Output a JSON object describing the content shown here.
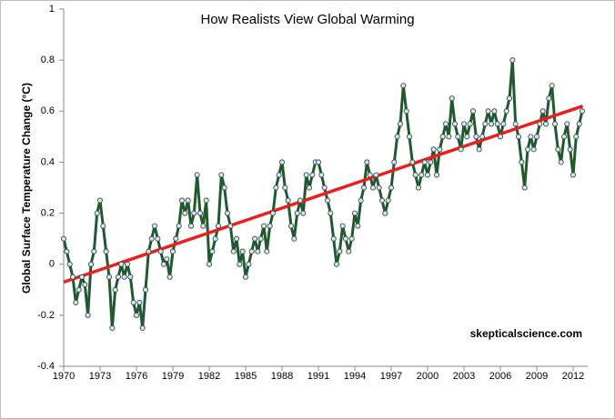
{
  "chart_data": {
    "type": "line",
    "title": "How Realists View Global Warming",
    "y_label": "Global Surface Temperature Change (°C)",
    "annotation": "skepticalscience.com",
    "x": [
      1970,
      1970.25,
      1970.5,
      1970.75,
      1971,
      1971.25,
      1971.5,
      1971.75,
      1972,
      1972.25,
      1972.5,
      1972.75,
      1973,
      1973.25,
      1973.5,
      1973.75,
      1974,
      1974.25,
      1974.5,
      1974.75,
      1975,
      1975.25,
      1975.5,
      1975.75,
      1976,
      1976.25,
      1976.5,
      1976.75,
      1977,
      1977.25,
      1977.5,
      1977.75,
      1978,
      1978.25,
      1978.5,
      1978.75,
      1979,
      1979.25,
      1979.5,
      1979.75,
      1980,
      1980.25,
      1980.5,
      1980.75,
      1981,
      1981.25,
      1981.5,
      1981.75,
      1982,
      1982.25,
      1982.5,
      1982.75,
      1983,
      1983.25,
      1983.5,
      1983.75,
      1984,
      1984.25,
      1984.5,
      1984.75,
      1985,
      1985.25,
      1985.5,
      1985.75,
      1986,
      1986.25,
      1986.5,
      1986.75,
      1987,
      1987.25,
      1987.5,
      1987.75,
      1988,
      1988.25,
      1988.5,
      1988.75,
      1989,
      1989.25,
      1989.5,
      1989.75,
      1990,
      1990.25,
      1990.5,
      1990.75,
      1991,
      1991.25,
      1991.5,
      1991.75,
      1992,
      1992.25,
      1992.5,
      1992.75,
      1993,
      1993.25,
      1993.5,
      1993.75,
      1994,
      1994.25,
      1994.5,
      1994.75,
      1995,
      1995.25,
      1995.5,
      1995.75,
      1996,
      1996.25,
      1996.5,
      1996.75,
      1997,
      1997.25,
      1997.5,
      1997.75,
      1998,
      1998.25,
      1998.5,
      1998.75,
      1999,
      1999.25,
      1999.5,
      1999.75,
      2000,
      2000.25,
      2000.5,
      2000.75,
      2001,
      2001.25,
      2001.5,
      2001.75,
      2002,
      2002.25,
      2002.5,
      2002.75,
      2003,
      2003.25,
      2003.5,
      2003.75,
      2004,
      2004.25,
      2004.5,
      2004.75,
      2005,
      2005.25,
      2005.5,
      2005.75,
      2006,
      2006.25,
      2006.5,
      2006.75,
      2007,
      2007.25,
      2007.5,
      2007.75,
      2008,
      2008.25,
      2008.5,
      2008.75,
      2009,
      2009.25,
      2009.5,
      2009.75,
      2010,
      2010.25,
      2010.5,
      2010.75,
      2011,
      2011.25,
      2011.5,
      2011.75,
      2012,
      2012.25,
      2012.5,
      2012.75
    ],
    "series": [
      {
        "name": "Temperature",
        "color": "#1f5a2e",
        "marker_color": "#cfe9f2",
        "values": [
          0.1,
          0.05,
          0.0,
          -0.05,
          -0.15,
          -0.1,
          -0.05,
          -0.08,
          -0.2,
          0.0,
          0.05,
          0.2,
          0.25,
          0.15,
          0.05,
          -0.05,
          -0.25,
          -0.1,
          -0.05,
          0.0,
          -0.05,
          0.0,
          -0.05,
          -0.15,
          -0.2,
          -0.15,
          -0.25,
          -0.1,
          0.05,
          0.1,
          0.15,
          0.1,
          0.05,
          0.0,
          0.02,
          -0.05,
          0.05,
          0.1,
          0.15,
          0.25,
          0.2,
          0.25,
          0.15,
          0.2,
          0.35,
          0.2,
          0.15,
          0.25,
          0.0,
          0.05,
          0.1,
          0.15,
          0.35,
          0.3,
          0.2,
          0.15,
          0.05,
          0.1,
          0.0,
          0.05,
          -0.05,
          0.0,
          0.05,
          0.1,
          0.05,
          0.1,
          0.15,
          0.05,
          0.15,
          0.2,
          0.3,
          0.35,
          0.4,
          0.3,
          0.25,
          0.15,
          0.1,
          0.2,
          0.25,
          0.2,
          0.35,
          0.3,
          0.35,
          0.4,
          0.4,
          0.35,
          0.3,
          0.25,
          0.2,
          0.1,
          0.0,
          0.05,
          0.15,
          0.1,
          0.05,
          0.1,
          0.2,
          0.15,
          0.25,
          0.3,
          0.4,
          0.35,
          0.3,
          0.35,
          0.3,
          0.25,
          0.2,
          0.25,
          0.3,
          0.4,
          0.5,
          0.55,
          0.7,
          0.6,
          0.5,
          0.4,
          0.35,
          0.3,
          0.35,
          0.4,
          0.35,
          0.4,
          0.45,
          0.35,
          0.45,
          0.5,
          0.55,
          0.5,
          0.65,
          0.55,
          0.5,
          0.45,
          0.55,
          0.5,
          0.55,
          0.6,
          0.5,
          0.45,
          0.5,
          0.55,
          0.6,
          0.55,
          0.6,
          0.55,
          0.5,
          0.55,
          0.6,
          0.65,
          0.8,
          0.55,
          0.5,
          0.4,
          0.3,
          0.45,
          0.5,
          0.45,
          0.5,
          0.55,
          0.6,
          0.55,
          0.65,
          0.7,
          0.55,
          0.45,
          0.4,
          0.5,
          0.55,
          0.45,
          0.35,
          0.5,
          0.55,
          0.6
        ]
      }
    ],
    "trend": {
      "x": [
        1970,
        2012.8
      ],
      "values": [
        -0.07,
        0.62
      ],
      "color": "#e8201e"
    },
    "xlim": [
      1970,
      2013.2
    ],
    "xticks": [
      1970,
      1973,
      1976,
      1979,
      1982,
      1985,
      1988,
      1991,
      1994,
      1997,
      2000,
      2003,
      2006,
      2009,
      2012
    ],
    "ylim": [
      -0.4,
      1
    ],
    "yticks": [
      -0.4,
      -0.2,
      0,
      0.2,
      0.4,
      0.6,
      0.8,
      1
    ],
    "grid": false
  }
}
